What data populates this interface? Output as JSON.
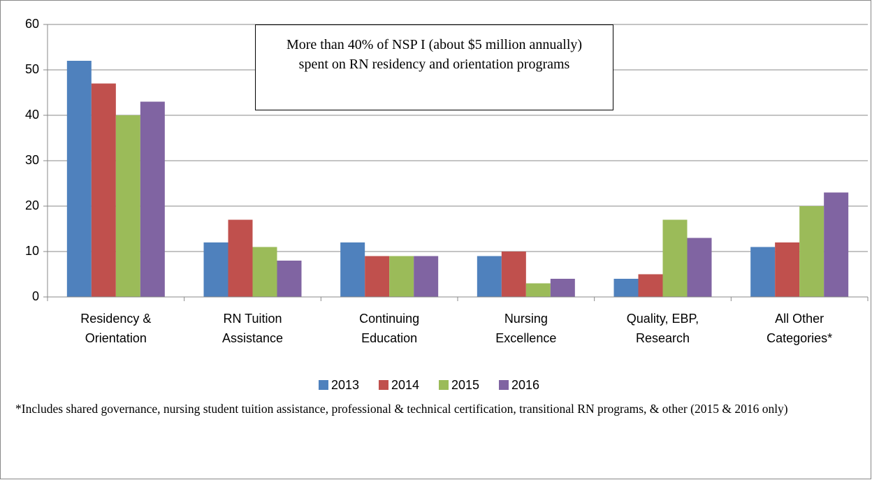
{
  "chart_data": {
    "type": "bar",
    "categories": [
      "Residency & Orientation",
      "RN Tuition Assistance",
      "Continuing Education",
      "Nursing Excellence",
      "Quality, EBP, Research",
      "All Other Categories*"
    ],
    "series": [
      {
        "name": "2013",
        "color": "#4f81bd",
        "values": [
          52,
          12,
          12,
          9,
          4,
          11
        ]
      },
      {
        "name": "2014",
        "color": "#c0504d",
        "values": [
          47,
          17,
          9,
          10,
          5,
          12
        ]
      },
      {
        "name": "2015",
        "color": "#9bbb59",
        "values": [
          40,
          11,
          9,
          3,
          17,
          20
        ]
      },
      {
        "name": "2016",
        "color": "#8064a2",
        "values": [
          43,
          8,
          9,
          4,
          13,
          23
        ]
      }
    ],
    "ylim": [
      0,
      60
    ],
    "yticks": [
      0,
      10,
      20,
      30,
      40,
      50,
      60
    ],
    "grid": true,
    "legend": "bottom",
    "annotation": "More than 40% of NSP I (about $5 million annually) spent on RN residency and orientation programs",
    "footnote": "*Includes shared governance, nursing student tuition assistance, professional & technical certification, transitional RN programs, & other (2015 & 2016 only)"
  }
}
